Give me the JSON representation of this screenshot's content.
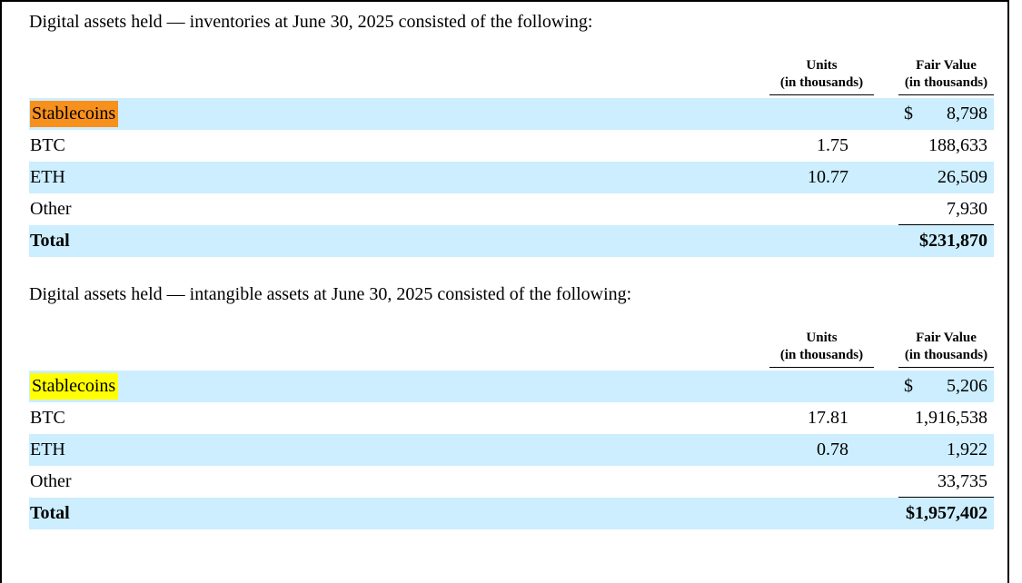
{
  "document": {
    "colors": {
      "row_band": "#cceeff",
      "inventories_stablecoins_highlight": "#f7901d",
      "intangibles_stablecoins_highlight": "#ffff00",
      "frame_border": "#000000",
      "text": "#000000"
    },
    "tables": [
      {
        "title": "Digital assets held — inventories at June 30, 2025 consisted of the following:",
        "header": {
          "units_line1": "Units",
          "units_line2": "(in thousands)",
          "fair_line1": "Fair Value",
          "fair_line2": "(in thousands)"
        },
        "rows": [
          {
            "label": "Stablecoins",
            "units": "",
            "currency": "$",
            "value": "8,798"
          },
          {
            "label": "BTC",
            "units": "1.75",
            "currency": "",
            "value": "188,633"
          },
          {
            "label": "ETH",
            "units": "10.77",
            "currency": "",
            "value": "26,509"
          },
          {
            "label": "Other",
            "units": "",
            "currency": "",
            "value": "7,930"
          }
        ],
        "total": {
          "label": "Total",
          "units": "",
          "value": "$231,870"
        }
      },
      {
        "title": "Digital assets held — intangible assets at June 30, 2025 consisted of the following:",
        "header": {
          "units_line1": "Units",
          "units_line2": "(in thousands)",
          "fair_line1": "Fair Value",
          "fair_line2": "(in thousands)"
        },
        "rows": [
          {
            "label": "Stablecoins",
            "units": "",
            "currency": "$",
            "value": "5,206"
          },
          {
            "label": "BTC",
            "units": "17.81",
            "currency": "",
            "value": "1,916,538"
          },
          {
            "label": "ETH",
            "units": "0.78",
            "currency": "",
            "value": "1,922"
          },
          {
            "label": "Other",
            "units": "",
            "currency": "",
            "value": "33,735"
          }
        ],
        "total": {
          "label": "Total",
          "units": "",
          "value": "$1,957,402"
        }
      }
    ]
  }
}
